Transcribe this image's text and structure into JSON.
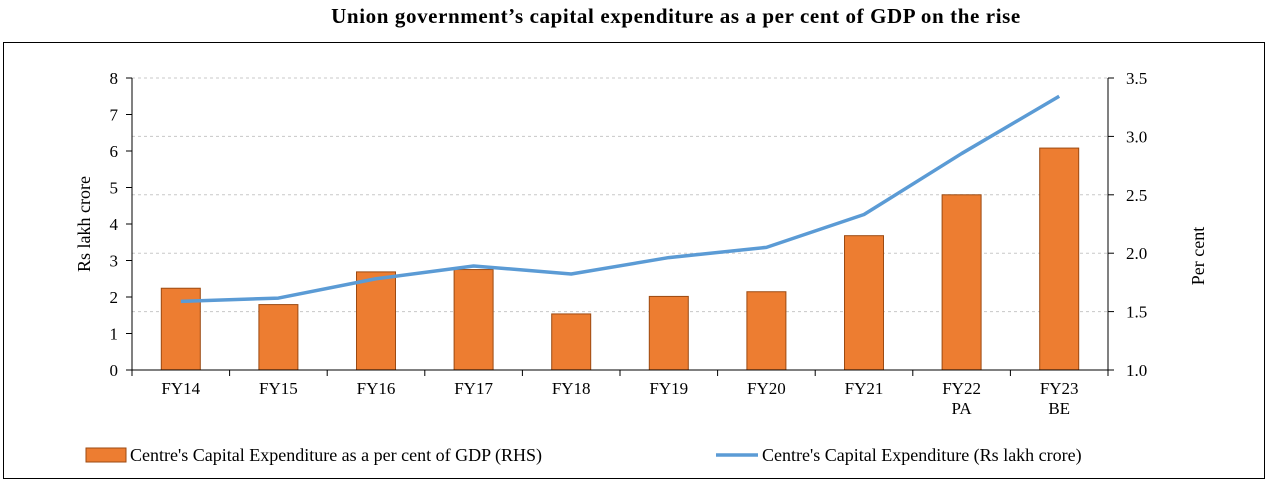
{
  "chart_data": {
    "type": "bar",
    "title": "Union government’s capital expenditure as a per cent of GDP on the rise",
    "categories": [
      [
        "FY14"
      ],
      [
        "FY15"
      ],
      [
        "FY16"
      ],
      [
        "FY17"
      ],
      [
        "FY18"
      ],
      [
        "FY19"
      ],
      [
        "FY20"
      ],
      [
        "FY21"
      ],
      [
        "FY22",
        "PA"
      ],
      [
        "FY23",
        "BE"
      ]
    ],
    "series": [
      {
        "name": "Centre's Capital Expenditure as a per cent of GDP (RHS)",
        "type": "bar",
        "axis": "right",
        "color": "#ED7D31",
        "values": [
          1.7,
          1.56,
          1.84,
          1.86,
          1.48,
          1.63,
          1.67,
          2.15,
          2.5,
          2.9
        ]
      },
      {
        "name": "Centre's Capital Expenditure (Rs lakh crore)",
        "type": "line",
        "axis": "left",
        "color": "#5B9BD5",
        "values": [
          1.88,
          1.97,
          2.5,
          2.85,
          2.63,
          3.08,
          3.36,
          4.26,
          5.93,
          7.5
        ]
      }
    ],
    "ylabel": "Rs lakh crore",
    "y2label": "Per cent",
    "ylim": [
      0,
      8
    ],
    "yticks": [
      "0",
      "1",
      "2",
      "3",
      "4",
      "5",
      "6",
      "7",
      "8"
    ],
    "y2lim": [
      1.0,
      3.5
    ],
    "y2ticks": [
      "1.0",
      "1.5",
      "2.0",
      "2.5",
      "3.0",
      "3.5"
    ],
    "grid": true,
    "legend_position": "bottom"
  }
}
